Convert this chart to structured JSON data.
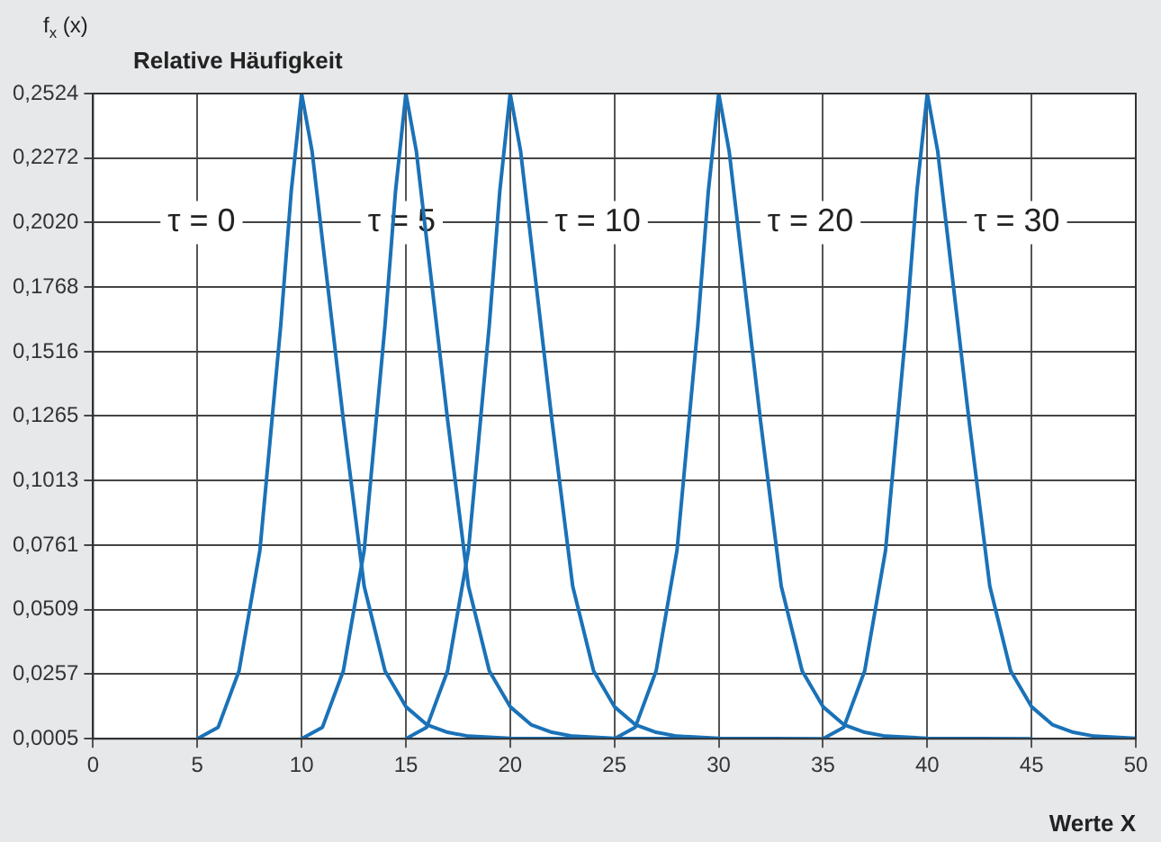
{
  "chart_data": {
    "type": "line",
    "title": "Relative Häufigkeit",
    "ylabel": "f$_{x}$ (x)",
    "xlabel": "Werte X",
    "series": [
      {
        "color": "#1a72b8",
        "x": [
          5,
          6,
          7,
          8,
          9,
          9.5,
          10,
          10.5,
          11,
          12,
          13,
          14,
          15,
          16,
          17,
          18,
          20,
          25
        ],
        "values": [
          0.0005,
          0.005,
          0.027,
          0.074,
          0.162,
          0.214,
          0.2524,
          0.23,
          0.195,
          0.125,
          0.06,
          0.027,
          0.013,
          0.006,
          0.003,
          0.0015,
          0.0007,
          0.0005
        ]
      },
      {
        "color": "#1a72b8",
        "x": [
          10,
          11,
          12,
          13,
          14,
          14.5,
          15,
          15.5,
          16,
          17,
          18,
          19,
          20,
          21,
          22,
          23,
          25,
          30
        ],
        "values": [
          0.0005,
          0.005,
          0.027,
          0.074,
          0.162,
          0.214,
          0.2524,
          0.23,
          0.195,
          0.125,
          0.06,
          0.027,
          0.013,
          0.006,
          0.003,
          0.0015,
          0.0007,
          0.0005
        ]
      },
      {
        "color": "#1a72b8",
        "x": [
          15,
          16,
          17,
          18,
          19,
          19.5,
          20,
          20.5,
          21,
          22,
          23,
          24,
          25,
          26,
          27,
          28,
          30,
          35
        ],
        "values": [
          0.0005,
          0.005,
          0.027,
          0.074,
          0.162,
          0.214,
          0.2524,
          0.23,
          0.195,
          0.125,
          0.06,
          0.027,
          0.013,
          0.006,
          0.003,
          0.0015,
          0.0007,
          0.0005
        ]
      },
      {
        "color": "#1a72b8",
        "x": [
          25,
          26,
          27,
          28,
          29,
          29.5,
          30,
          30.5,
          31,
          32,
          33,
          34,
          35,
          36,
          37,
          38,
          40,
          45
        ],
        "values": [
          0.0005,
          0.005,
          0.027,
          0.074,
          0.162,
          0.214,
          0.2524,
          0.23,
          0.195,
          0.125,
          0.06,
          0.027,
          0.013,
          0.006,
          0.003,
          0.0015,
          0.0007,
          0.0005
        ]
      },
      {
        "color": "#1a72b8",
        "x": [
          35,
          36,
          37,
          38,
          39,
          39.5,
          40,
          40.5,
          41,
          42,
          43,
          44,
          45,
          46,
          47,
          48,
          50
        ],
        "values": [
          0.0005,
          0.005,
          0.027,
          0.074,
          0.162,
          0.214,
          0.2524,
          0.23,
          0.195,
          0.125,
          0.06,
          0.027,
          0.013,
          0.006,
          0.003,
          0.0015,
          0.0007
        ]
      }
    ],
    "annotations": [
      "τ = 0",
      "τ = 5",
      "τ = 10",
      "τ = 20",
      "τ = 30"
    ],
    "xlim": [
      0,
      50
    ],
    "xticks": [
      0,
      5,
      10,
      15,
      20,
      25,
      30,
      35,
      40,
      45,
      50
    ],
    "ylim": [
      0.0005,
      0.2524
    ],
    "yticks": [
      {
        "value": 0.0005,
        "label": "0,0005"
      },
      {
        "value": 0.0257,
        "label": "0,0257"
      },
      {
        "value": 0.0509,
        "label": "0,0509"
      },
      {
        "value": 0.0761,
        "label": "0,0761"
      },
      {
        "value": 0.1013,
        "label": "0,1013"
      },
      {
        "value": 0.1265,
        "label": "0,1265"
      },
      {
        "value": 0.1516,
        "label": "0,1516"
      },
      {
        "value": 0.1768,
        "label": "0,1768"
      },
      {
        "value": 0.202,
        "label": "0,2020"
      },
      {
        "value": 0.2272,
        "label": "0,2272"
      },
      {
        "value": 0.2524,
        "label": "0,2524"
      }
    ],
    "grid": true,
    "legend": false,
    "marker": "none",
    "line_style": "solid"
  }
}
